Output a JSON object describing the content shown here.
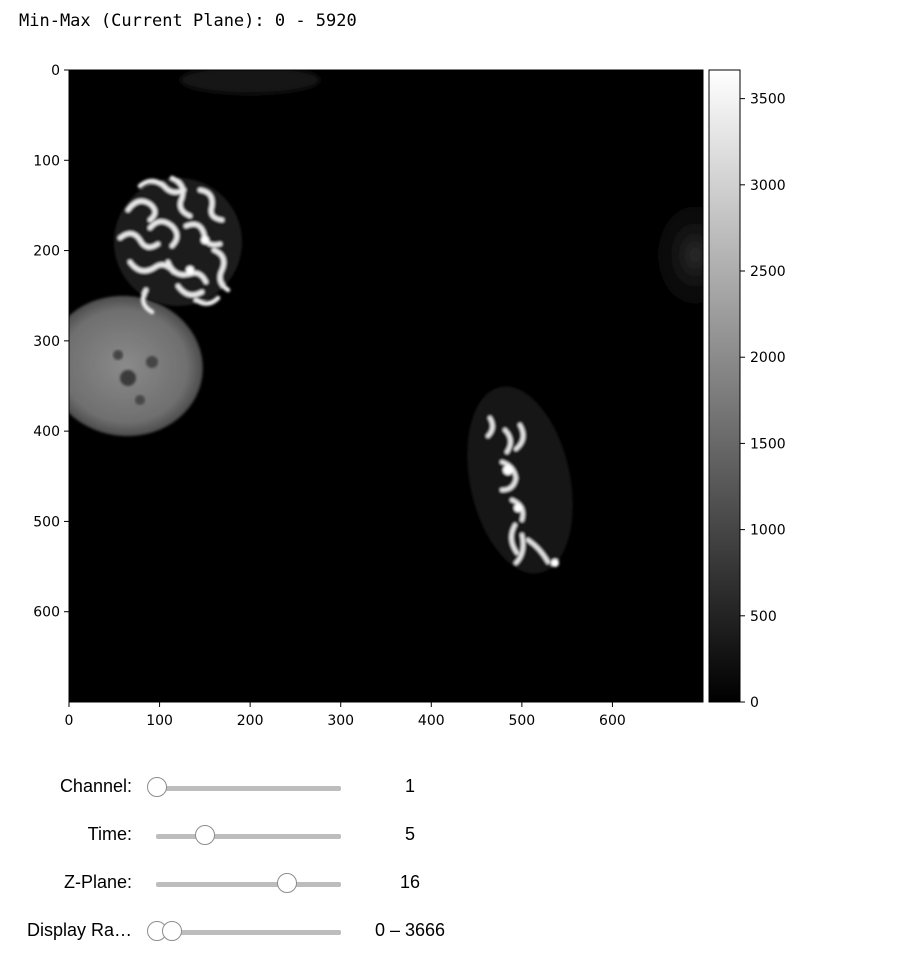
{
  "header": {
    "minmax_text": "Min-Max (Current Plane): 0 - 5920"
  },
  "image_panel": {
    "x_ticks": [
      "0",
      "100",
      "200",
      "300",
      "400",
      "500",
      "600"
    ],
    "y_ticks": [
      "0",
      "100",
      "200",
      "300",
      "400",
      "500",
      "600"
    ],
    "x_range": [
      0,
      700
    ],
    "y_range": [
      0,
      700
    ]
  },
  "colorbar": {
    "ticks": [
      "0",
      "500",
      "1000",
      "1500",
      "2000",
      "2500",
      "3000",
      "3500"
    ],
    "range": [
      0,
      3666
    ],
    "colormap": "gray"
  },
  "widgets": {
    "channel": {
      "label": "Channel:",
      "value": "1",
      "fraction": 0.0
    },
    "time": {
      "label": "Time:",
      "value": "5",
      "fraction": 0.29
    },
    "zplane": {
      "label": "Z-Plane:",
      "value": "16",
      "fraction": 0.79
    },
    "display_range": {
      "label": "Display Ra…",
      "value": "0 – 3666",
      "low_fraction": 0.0,
      "high_fraction": 0.09
    }
  }
}
